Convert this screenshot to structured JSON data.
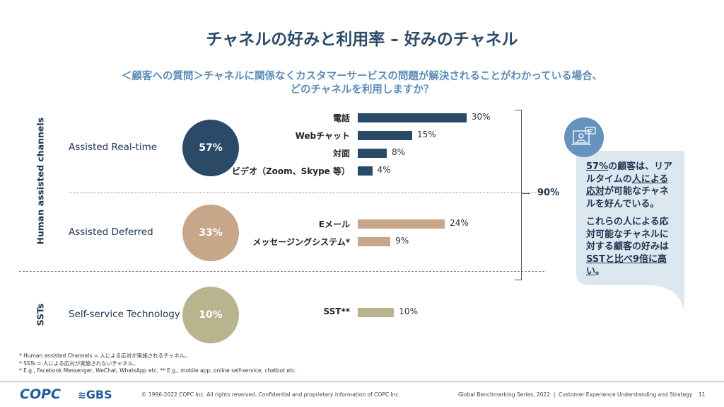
{
  "title": "チャネルの好みと利用率 – 好みのチャネル",
  "subtitle": [
    "＜顧客への質問＞チャネルに関係なくカスタマーサービスの問題が解決されることがわかっている場合、",
    "どのチャネルを利用しますか？"
  ],
  "side_labels": {
    "human": "Human assisted channels",
    "sst": "SSTs"
  },
  "chart_data": {
    "type": "bar",
    "orientation": "horizontal",
    "groups": [
      {
        "name": "Assisted Real-time",
        "total": "57%",
        "color": "#2b4a68",
        "categories": [
          "電話",
          "Webチャット",
          "対面",
          "ビデオ（Zoom、Skype 等）"
        ],
        "values": [
          30,
          15,
          8,
          4
        ],
        "labels": [
          "30%",
          "15%",
          "8%",
          "4%"
        ]
      },
      {
        "name": "Assisted Deferred",
        "total": "33%",
        "color": "#c8a68a",
        "categories": [
          "Eメール",
          "メッセージングシステム*"
        ],
        "values": [
          24,
          9
        ],
        "labels": [
          "24%",
          "9%"
        ]
      },
      {
        "name": "Self-service Technology",
        "total": "10%",
        "color": "#b8b48e",
        "categories": [
          "SST**"
        ],
        "values": [
          10
        ],
        "labels": [
          "10%"
        ]
      }
    ],
    "bracket_total": "90%"
  },
  "callout": {
    "icon": "video-call-icon",
    "p1": [
      {
        "t": "57%",
        "u": true
      },
      {
        "t": "の顧客は、リアルタイムの"
      },
      {
        "t": "人による応対",
        "u": true
      },
      {
        "t": "が可能なチャネルを好んでいる。"
      }
    ],
    "p2": [
      {
        "t": "これらの人による応対可能なチャネルに対する顧客の好みは"
      },
      {
        "t": "SSTと比べ9倍に高い",
        "u": true
      },
      {
        "t": "。"
      }
    ]
  },
  "footnotes": [
    "* Human assisted Channels = 人による応対が実施されるチャネル。",
    "* SSTs = 人による応対が実施されないチャネル。",
    "* E.g., Facebook Messenger, WeChat, WhatsApp etc.  ** E.g., mobile app, online self-service, chatbot etc."
  ],
  "footer": {
    "logo1": "COPC",
    "logo2": "GBS",
    "copyright": "© 1996-2022 COPC Inc. All rights reserved. Confidential and proprietary information of COPC Inc.",
    "series": "Global Benchmarking Series, 2022  |  Customer Experience Understanding and Strategy",
    "page": "11"
  }
}
